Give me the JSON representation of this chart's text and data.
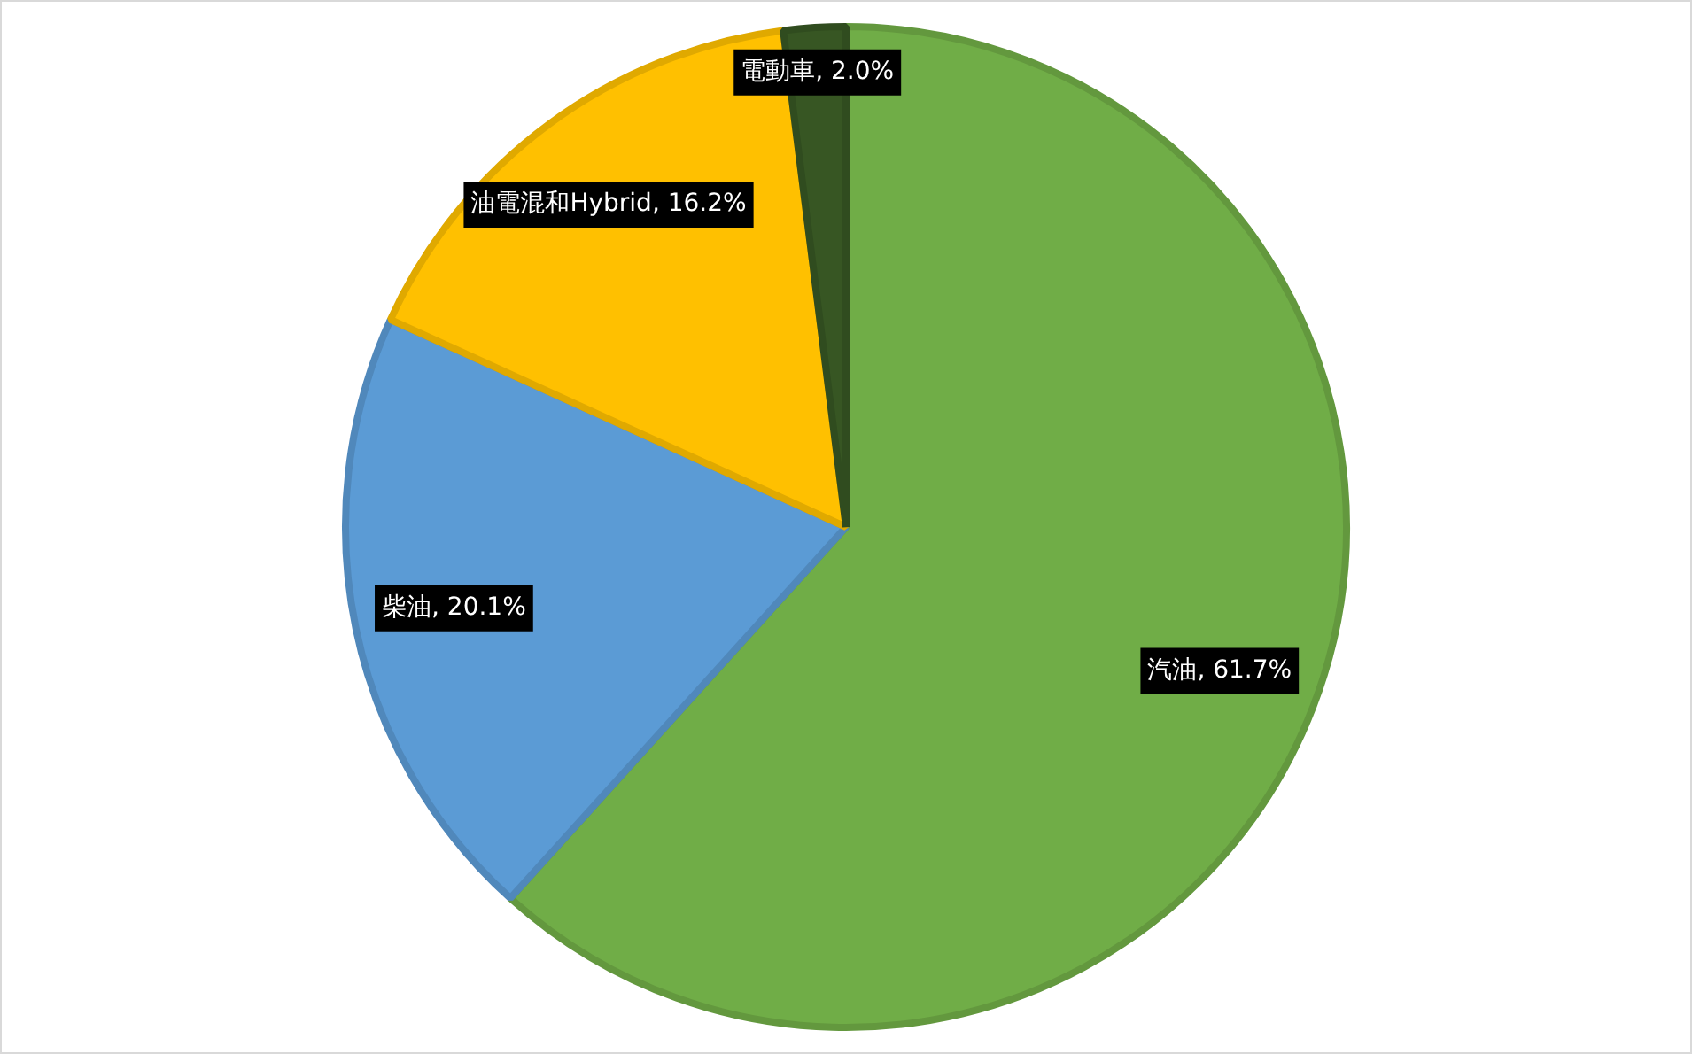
{
  "chart_data": {
    "type": "pie",
    "categories": [
      "汽油",
      "柴油",
      "油電混和Hybrid",
      "電動車"
    ],
    "values": [
      61.7,
      20.1,
      16.2,
      2.0
    ],
    "colors": [
      "#70ad47",
      "#5b9bd5",
      "#ffc000",
      "#375623"
    ],
    "value_labels": [
      "61.7%",
      "20.1%",
      "16.2%",
      "2.0%"
    ],
    "legend": false
  }
}
